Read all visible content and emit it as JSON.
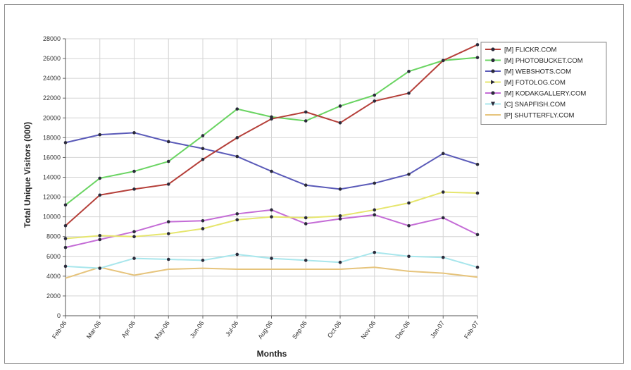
{
  "chart_data": {
    "type": "line",
    "title": "",
    "xlabel": "Months",
    "ylabel": "Total Unique Visitors (000)",
    "ylim": [
      0,
      28000
    ],
    "ytick_step": 2000,
    "grid": true,
    "legend_position": "right",
    "categories": [
      "Feb-06",
      "Mar-06",
      "Apr-06",
      "May-06",
      "Jun-06",
      "Jul-06",
      "Aug-06",
      "Sep-06",
      "Oct-06",
      "Nov-06",
      "Dec-06",
      "Jan-07",
      "Feb-07"
    ],
    "series": [
      {
        "name": "[M] FLICKR.COM",
        "color": "#b5403a",
        "marker": "circle",
        "values": [
          9100,
          12200,
          12800,
          13300,
          15800,
          18000,
          19900,
          20600,
          19500,
          21700,
          22500,
          25800,
          27400
        ]
      },
      {
        "name": "[M] PHOTOBUCKET.COM",
        "color": "#6ad462",
        "marker": "circle",
        "values": [
          11200,
          13900,
          14600,
          15600,
          18200,
          20900,
          20100,
          19700,
          21200,
          22300,
          24700,
          25800,
          26100
        ]
      },
      {
        "name": "[M] WEBSHOTS.COM",
        "color": "#5a5ab8",
        "marker": "circle",
        "values": [
          17500,
          18300,
          18500,
          17600,
          16900,
          16100,
          14600,
          13200,
          12800,
          13400,
          14300,
          16400,
          15300
        ]
      },
      {
        "name": "[M] FOTOLOG.COM",
        "color": "#e6e66e",
        "marker": "triangle-right",
        "values": [
          7800,
          8100,
          8000,
          8300,
          8800,
          9700,
          10000,
          9900,
          10100,
          10700,
          11400,
          12500,
          12400
        ]
      },
      {
        "name": "[M] KODAKGALLERY.COM",
        "color": "#c46cd6",
        "marker": "circle",
        "values": [
          6900,
          7700,
          8500,
          9500,
          9600,
          10300,
          10700,
          9300,
          9800,
          10200,
          9100,
          9900,
          8200
        ]
      },
      {
        "name": "[C] SNAPFISH.COM",
        "color": "#a8e6ec",
        "marker": "triangle-down",
        "values": [
          5000,
          4800,
          5800,
          5700,
          5600,
          6200,
          5800,
          5600,
          5400,
          6400,
          6000,
          5900,
          4900
        ]
      },
      {
        "name": "[P] SHUTTERFLY.COM",
        "color": "#e6c47c",
        "marker": "none",
        "values": [
          3800,
          4900,
          4100,
          4700,
          4800,
          4700,
          4700,
          4700,
          4700,
          4900,
          4500,
          4300,
          3900
        ]
      }
    ]
  }
}
